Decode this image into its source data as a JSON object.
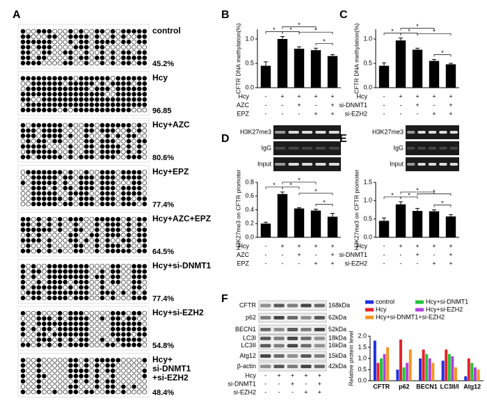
{
  "panel_A": {
    "letter": "A",
    "samples": [
      [
        "control"
      ],
      [
        "Hcy"
      ],
      [
        "Hcy+AZC"
      ],
      [
        "Hcy+EPZ"
      ],
      [
        "Hcy+AZC+EPZ"
      ],
      [
        "Hcy+si-DNMT1"
      ],
      [
        "Hcy+si-EZH2"
      ],
      [
        "Hcy+",
        "si-DNMT1",
        "+si-EZH2"
      ]
    ],
    "values": [
      45.2,
      96.85,
      80.6,
      77.4,
      64.5,
      77.4,
      54.8,
      48.4
    ],
    "value_labels": [
      "45.2%",
      "96.85",
      "80.6%",
      "77.4%",
      "64.5%",
      "77.4%",
      "54.8%",
      "48.4%"
    ]
  },
  "chart_data": [
    {
      "type": "bar",
      "panel": "B",
      "ylabel": "CFTR DNA methylation(%)",
      "values": [
        0.45,
        1.0,
        0.8,
        0.77,
        0.65
      ],
      "errors": [
        0.08,
        0.05,
        0.04,
        0.04,
        0.03
      ],
      "color": "#000000",
      "ylim": [
        0,
        1.2
      ],
      "yticks": [
        {
          "value": 0,
          "label": "0.0"
        },
        0.5,
        {
          "value": 1,
          "label": "1.0"
        }
      ],
      "conditions": [
        {
          "name": "Hcy",
          "signs": [
            "-",
            "+",
            "+",
            "+",
            "+"
          ]
        },
        {
          "name": "AZC",
          "signs": [
            "-",
            "-",
            "+",
            "-",
            "+"
          ]
        },
        {
          "name": "EPZ",
          "signs": [
            "-",
            "-",
            "-",
            "+",
            "+"
          ]
        }
      ],
      "significance": [
        {
          "bars": [
            0,
            1
          ],
          "label": "*"
        },
        {
          "bars": [
            1,
            2
          ],
          "label": "*"
        },
        {
          "bars": [
            1,
            3
          ],
          "label": "*"
        },
        {
          "bars": [
            3,
            4
          ],
          "label": "*"
        },
        {
          "bars": [
            2,
            4
          ],
          "label": "*"
        }
      ]
    },
    {
      "type": "bar",
      "panel": "C",
      "ylabel": "CFTR DNA methylation(%)",
      "values": [
        0.45,
        0.97,
        0.78,
        0.55,
        0.48
      ],
      "errors": [
        0.06,
        0.05,
        0.03,
        0.03,
        0.02
      ],
      "color": "#000000",
      "ylim": [
        0,
        1.2
      ],
      "yticks": [
        {
          "value": 0,
          "label": "0.0"
        },
        0.5,
        {
          "value": 1,
          "label": "1.0"
        }
      ],
      "conditions": [
        {
          "name": "Hcy",
          "signs": [
            "-",
            "+",
            "+",
            "+",
            "+"
          ]
        },
        {
          "name": "si-DNMT1",
          "signs": [
            "-",
            "-",
            "+",
            "-",
            "+"
          ]
        },
        {
          "name": "si-EZH2",
          "signs": [
            "-",
            "-",
            "-",
            "+",
            "+"
          ]
        }
      ],
      "significance": [
        {
          "bars": [
            0,
            1
          ],
          "label": "*"
        },
        {
          "bars": [
            1,
            2
          ],
          "label": "*"
        },
        {
          "bars": [
            1,
            3
          ],
          "label": "*"
        },
        {
          "bars": [
            3,
            4
          ],
          "label": "*"
        },
        {
          "bars": [
            2,
            4
          ],
          "label": "*"
        }
      ]
    },
    {
      "type": "bar",
      "panel": "D",
      "gel_rows": [
        "H3K27me3",
        "IgG",
        "Input"
      ],
      "ylabel": "H3K27me3 on CFTR promoter",
      "values": [
        0.2,
        0.63,
        0.42,
        0.39,
        0.3
      ],
      "errors": [
        0.02,
        0.03,
        0.01,
        0.02,
        0.05
      ],
      "color": "#000000",
      "ylim": [
        0,
        0.8
      ],
      "yticks": [
        {
          "value": 0,
          "label": "0.0"
        },
        0.2,
        0.4,
        0.6,
        0.8
      ],
      "conditions": [
        {
          "name": "Hcy",
          "signs": [
            "-",
            "+",
            "+",
            "+",
            "+"
          ]
        },
        {
          "name": "AZC",
          "signs": [
            "-",
            "-",
            "+",
            "-",
            "+"
          ]
        },
        {
          "name": "EPZ",
          "signs": [
            "-",
            "-",
            "-",
            "+",
            "+"
          ]
        }
      ],
      "significance": [
        {
          "bars": [
            0,
            1
          ],
          "label": "*"
        },
        {
          "bars": [
            1,
            2
          ],
          "label": "*"
        },
        {
          "bars": [
            1,
            3
          ],
          "label": "*"
        },
        {
          "bars": [
            3,
            4
          ],
          "label": "*"
        },
        {
          "bars": [
            2,
            4
          ],
          "label": "*"
        }
      ]
    },
    {
      "type": "bar",
      "panel": "E",
      "gel_rows": [
        "H3K27me3",
        "IgG",
        "Input"
      ],
      "ylabel": "H3K27me3 on CFTR promoter",
      "values": [
        0.45,
        0.9,
        0.72,
        0.71,
        0.57
      ],
      "errors": [
        0.08,
        0.07,
        0.07,
        0.04,
        0.05
      ],
      "color": "#000000",
      "ylim": [
        0,
        1.5
      ],
      "yticks": [
        {
          "value": 0,
          "label": "0.0"
        },
        0.5,
        {
          "value": 1,
          "label": "1.0"
        },
        1.5
      ],
      "conditions": [
        {
          "name": "Hcy",
          "signs": [
            "-",
            "+",
            "+",
            "+",
            "+"
          ]
        },
        {
          "name": "si-DNMT1",
          "signs": [
            "-",
            "-",
            "+",
            "-",
            "+"
          ]
        },
        {
          "name": "si-EZH2",
          "signs": [
            "-",
            "-",
            "-",
            "+",
            "+"
          ]
        }
      ],
      "significance": [
        {
          "bars": [
            0,
            1
          ],
          "label": "*"
        },
        {
          "bars": [
            1,
            2
          ],
          "label": "*"
        },
        {
          "bars": [
            1,
            3
          ],
          "label": "*"
        },
        {
          "bars": [
            3,
            4
          ],
          "label": "*"
        },
        {
          "bars": [
            2,
            4
          ],
          "label": "*"
        }
      ]
    },
    {
      "type": "grouped_bar",
      "ylabel": "Relative protein level",
      "categories": [
        "CFTR",
        "p62",
        "BECN1",
        "LC3II/I",
        "Atg12"
      ],
      "series": [
        {
          "name": "control",
          "color": "#1f2fe0",
          "values": [
            1.8,
            0.5,
            1.0,
            0.9,
            0.2
          ]
        },
        {
          "name": "Hcy",
          "color": "#e8202a",
          "values": [
            0.8,
            1.85,
            1.4,
            1.4,
            1.0
          ]
        },
        {
          "name": "Hcy+si-DNMT1",
          "color": "#22c33a",
          "values": [
            1.0,
            0.6,
            1.2,
            1.2,
            0.8
          ]
        },
        {
          "name": "Hcy+si-EZH2",
          "color": "#b040e0",
          "values": [
            1.2,
            0.8,
            1.0,
            1.1,
            0.6
          ]
        },
        {
          "name": "Hcy+si-DNMT1+si-EZH2",
          "color": "#f7941d",
          "values": [
            1.5,
            1.4,
            0.8,
            0.6,
            0.5
          ]
        }
      ],
      "ylim": [
        0,
        2.0
      ],
      "yticks": [
        {
          "value": 0,
          "label": "0.0"
        },
        0.5,
        {
          "value": 1,
          "label": "1.0"
        },
        1.5,
        {
          "value": 2,
          "label": "2.0"
        }
      ]
    }
  ],
  "blot_F": {
    "panel": "F",
    "rows": [
      {
        "label": [
          "CFTR"
        ],
        "kda": [
          "168kDa"
        ]
      },
      {
        "label": [
          "p62"
        ],
        "kda": [
          "62kDa"
        ]
      },
      {
        "label": [
          "BECN1"
        ],
        "kda": [
          "52kDa"
        ]
      },
      {
        "label": [
          "LC3I",
          "LC3II"
        ],
        "kda": [
          "18kDa",
          "16kDa"
        ]
      },
      {
        "label": [
          "Atg12"
        ],
        "kda": [
          "15kDa"
        ]
      },
      {
        "label": [
          "β-actin"
        ],
        "kda": [
          "42kDa"
        ]
      }
    ],
    "conditions": [
      {
        "name": "Hcy",
        "signs": [
          "-",
          "+",
          "+",
          "+",
          "+"
        ]
      },
      {
        "name": "si-DNMT1",
        "signs": [
          "-",
          "-",
          "+",
          "-",
          "+"
        ]
      },
      {
        "name": "si-EZH2",
        "signs": [
          "-",
          "-",
          "-",
          "+",
          "+"
        ]
      }
    ]
  }
}
